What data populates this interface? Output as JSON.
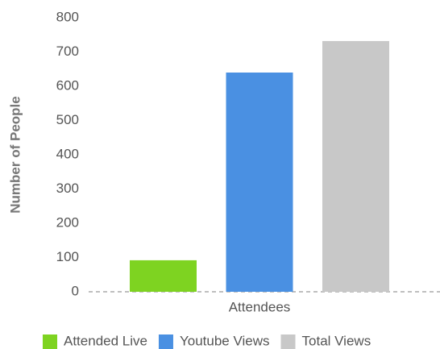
{
  "chart_data": {
    "type": "bar",
    "y_label": "Number of People",
    "categories": [
      "Attendees"
    ],
    "series": [
      {
        "name": "Attended Live",
        "color": "#7ed321",
        "values": [
          92
        ]
      },
      {
        "name": "Youtube Views",
        "color": "#4a90e2",
        "values": [
          640
        ]
      },
      {
        "name": "Total Views",
        "color": "#c8c8c8",
        "values": [
          732
        ]
      }
    ],
    "ylim": [
      0,
      800
    ],
    "yticks": [
      0,
      100,
      200,
      300,
      400,
      500,
      600,
      700,
      800
    ],
    "grid": false,
    "legend": "bottom"
  }
}
